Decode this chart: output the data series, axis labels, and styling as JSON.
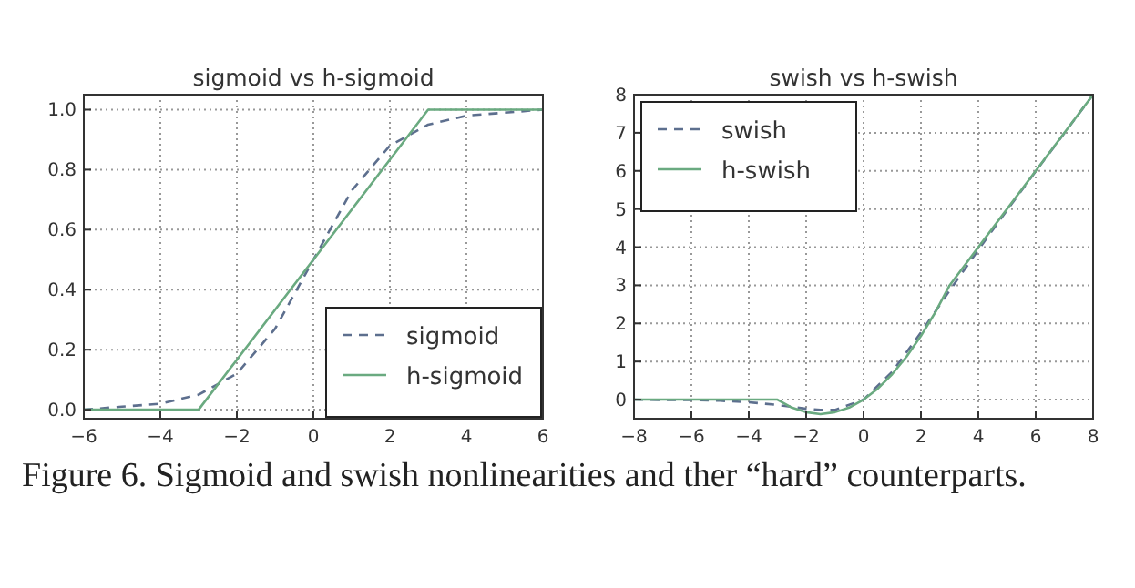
{
  "chart_data": [
    {
      "type": "line",
      "title": "sigmoid vs h-sigmoid",
      "xlim": [
        -6,
        6
      ],
      "xticks": [
        {
          "value": -6,
          "label": "−6"
        },
        {
          "value": -4,
          "label": "−4"
        },
        {
          "value": -2,
          "label": "−2"
        },
        0,
        2,
        4,
        6
      ],
      "ylim": [
        -0.03,
        1.05
      ],
      "yticks": [
        {
          "value": 0,
          "label": "0.0"
        },
        {
          "value": 0.2,
          "label": "0.2"
        },
        {
          "value": 0.4,
          "label": "0.4"
        },
        {
          "value": 0.6,
          "label": "0.6"
        },
        {
          "value": 0.8,
          "label": "0.8"
        },
        {
          "value": 1,
          "label": "1.0"
        }
      ],
      "grid": true,
      "legend": "bottom right",
      "series": [
        {
          "name": "sigmoid",
          "color": "#5d6f8e",
          "line_style": "dashed",
          "x": [
            -6,
            -5,
            -4,
            -3,
            -2,
            -1,
            0,
            1,
            2,
            3,
            4,
            5,
            6
          ],
          "values": [
            0.0,
            0.01,
            0.02,
            0.05,
            0.12,
            0.27,
            0.5,
            0.73,
            0.88,
            0.95,
            0.98,
            0.99,
            1.0
          ]
        },
        {
          "name": "h-sigmoid",
          "color": "#6aaa80",
          "line_style": "solid",
          "x": [
            -6,
            -3,
            3,
            6
          ],
          "values": [
            0,
            0,
            1,
            1
          ]
        }
      ]
    },
    {
      "type": "line",
      "title": "swish vs h-swish",
      "xlim": [
        -8,
        8
      ],
      "xticks": [
        {
          "value": -8,
          "label": "−8"
        },
        {
          "value": -6,
          "label": "−6"
        },
        {
          "value": -4,
          "label": "−4"
        },
        {
          "value": -2,
          "label": "−2"
        },
        0,
        2,
        4,
        6,
        8
      ],
      "ylim": [
        -0.5,
        8
      ],
      "yticks": [
        0,
        1,
        2,
        3,
        4,
        5,
        6,
        7,
        8
      ],
      "grid": true,
      "legend": "top left",
      "series": [
        {
          "name": "swish",
          "color": "#5d6f8e",
          "line_style": "dashed",
          "x": [
            -8,
            -7,
            -6,
            -5,
            -4,
            -3,
            -2,
            -1.5,
            -1,
            0,
            1,
            2,
            3,
            4,
            5,
            6,
            7,
            8
          ],
          "values": [
            0,
            -0.01,
            -0.01,
            -0.03,
            -0.07,
            -0.14,
            -0.24,
            -0.27,
            -0.27,
            0,
            0.73,
            1.76,
            2.86,
            3.93,
            4.97,
            5.99,
            6.99,
            8
          ]
        },
        {
          "name": "h-swish",
          "color": "#6aaa80",
          "line_style": "solid",
          "x": [
            -8,
            -3,
            -2.5,
            -2,
            -1.5,
            -1,
            -0.5,
            0,
            0.5,
            1,
            1.5,
            2,
            2.5,
            3,
            8
          ],
          "values": [
            0,
            0,
            -0.21,
            -0.33,
            -0.38,
            -0.33,
            -0.21,
            0,
            0.29,
            0.67,
            1.13,
            1.67,
            2.29,
            3,
            8
          ]
        }
      ],
      "annotations": [
        "Figure 6. Sigmoid and swish nonlinearities and ther “hard” counterparts."
      ]
    }
  ]
}
